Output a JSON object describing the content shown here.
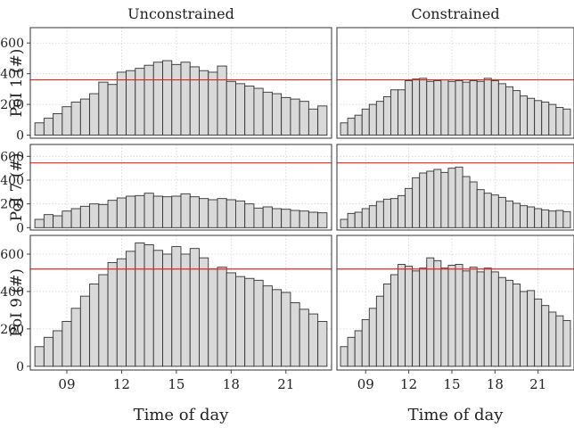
{
  "chart_data": {
    "type": "bar",
    "layout": "facet-grid 3 rows x 2 columns",
    "columns": [
      "Unconstrained",
      "Constrained"
    ],
    "xlabel": "Time of day",
    "x_ticks": [
      9,
      12,
      15,
      18,
      21
    ],
    "x_tick_labels": [
      "09",
      "12",
      "15",
      "18",
      "21"
    ],
    "x_values": [
      7.5,
      8,
      8.5,
      9,
      9.5,
      10,
      10.5,
      11,
      11.5,
      12,
      12.5,
      13,
      13.5,
      14,
      14.5,
      15,
      15.5,
      16,
      16.5,
      17,
      17.5,
      18,
      18.5,
      19,
      19.5,
      20,
      20.5,
      21,
      21.5,
      22,
      22.5,
      23
    ],
    "xlim": [
      7,
      23.5
    ],
    "ylim": [
      -20,
      700
    ],
    "y_ticks": [
      0,
      200,
      400,
      600
    ],
    "grid": true,
    "colors": {
      "bar_fill": "#d9d9d9",
      "bar_stroke": "#333333",
      "capacity_line": "#e8261c",
      "grid": "#d4d4d4",
      "panel_border": "#333333"
    },
    "rows": [
      {
        "ylabel": "PoI 1 (#)",
        "capacity": 360,
        "panels": [
          {
            "column": "Unconstrained",
            "values": [
              80,
              110,
              140,
              185,
              215,
              235,
              270,
              345,
              330,
              410,
              420,
              435,
              455,
              475,
              485,
              460,
              475,
              445,
              420,
              410,
              450,
              350,
              335,
              320,
              305,
              280,
              270,
              245,
              235,
              220,
              170,
              190
            ]
          },
          {
            "column": "Constrained",
            "values": [
              80,
              110,
              130,
              170,
              200,
              220,
              250,
              295,
              295,
              355,
              365,
              370,
              350,
              355,
              360,
              350,
              355,
              345,
              355,
              350,
              370,
              355,
              335,
              315,
              290,
              255,
              240,
              225,
              215,
              200,
              180,
              170
            ]
          }
        ]
      },
      {
        "ylabel": "PoI 7 (#)",
        "capacity": 545,
        "panels": [
          {
            "column": "Unconstrained",
            "values": [
              70,
              110,
              100,
              140,
              160,
              180,
              200,
              195,
              230,
              250,
              265,
              270,
              290,
              265,
              260,
              265,
              285,
              260,
              245,
              235,
              245,
              235,
              225,
              200,
              165,
              175,
              160,
              155,
              145,
              140,
              130,
              125
            ]
          },
          {
            "column": "Constrained",
            "values": [
              70,
              120,
              130,
              160,
              185,
              220,
              240,
              245,
              270,
              330,
              420,
              460,
              475,
              490,
              465,
              500,
              510,
              430,
              385,
              320,
              290,
              275,
              255,
              225,
              205,
              185,
              175,
              160,
              150,
              140,
              145,
              135
            ]
          }
        ]
      },
      {
        "ylabel": "PoI 9 (#)",
        "capacity": 520,
        "panels": [
          {
            "column": "Unconstrained",
            "values": [
              105,
              155,
              190,
              240,
              310,
              375,
              440,
              490,
              555,
              575,
              615,
              660,
              650,
              620,
              600,
              640,
              600,
              630,
              580,
              520,
              530,
              500,
              480,
              470,
              460,
              430,
              410,
              395,
              340,
              305,
              280,
              240
            ]
          },
          {
            "column": "Constrained",
            "values": [
              105,
              155,
              190,
              250,
              310,
              375,
              440,
              490,
              545,
              535,
              510,
              525,
              580,
              565,
              525,
              540,
              545,
              510,
              530,
              505,
              525,
              505,
              475,
              460,
              440,
              400,
              405,
              360,
              325,
              290,
              270,
              245
            ]
          }
        ]
      }
    ]
  }
}
